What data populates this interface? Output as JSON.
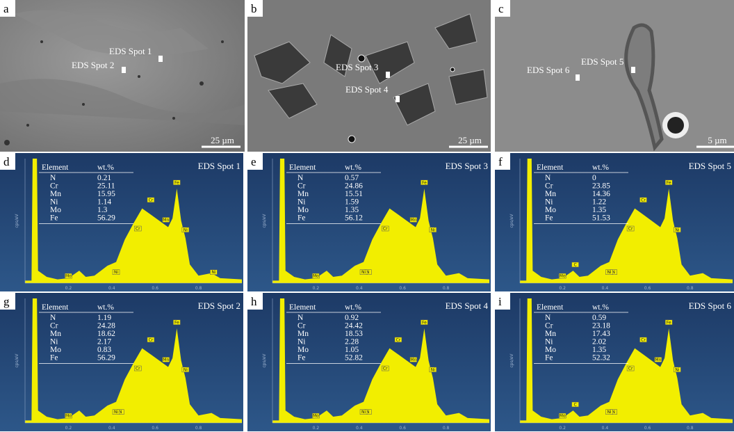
{
  "images": [
    {
      "label": "a",
      "scale_bar": "25 µm",
      "spots": [
        "EDS Spot 1",
        "EDS Spot 2"
      ]
    },
    {
      "label": "b",
      "scale_bar": "25 µm",
      "spots": [
        "EDS Spot 3",
        "EDS Spot 4"
      ]
    },
    {
      "label": "c",
      "scale_bar": "5 µm",
      "spots": [
        "EDS Spot 5",
        "EDS Spot 6"
      ]
    }
  ],
  "spectra_axis": {
    "x_ticks": [
      0.2,
      0.4,
      0.6,
      0.8
    ],
    "y_label": "cps/eV"
  },
  "spectra": [
    {
      "label": "d",
      "title": "EDS Spot 1",
      "header": [
        "Element",
        "wt.%"
      ],
      "rows": [
        [
          "N",
          0.21
        ],
        [
          "Cr",
          25.11
        ],
        [
          "Mn",
          15.95
        ],
        [
          "Ni",
          1.14
        ],
        [
          "Mo",
          1.3
        ],
        [
          "Fe",
          56.29
        ]
      ],
      "peaks": [
        "Mo",
        "Ni",
        "Cr",
        "Cr",
        "Mn",
        "Fe",
        "Ni",
        "Ni"
      ]
    },
    {
      "label": "e",
      "title": "EDS Spot 3",
      "header": [
        "Element",
        "wt.%"
      ],
      "rows": [
        [
          "N",
          0.57
        ],
        [
          "Cr",
          24.86
        ],
        [
          "Mn",
          15.51
        ],
        [
          "Ni",
          1.59
        ],
        [
          "Mo",
          1.35
        ],
        [
          "Fe",
          56.12
        ]
      ],
      "peaks": [
        "Mo",
        "N",
        "Cr",
        "Mn",
        "Fe",
        "Ni",
        "Ni"
      ]
    },
    {
      "label": "f",
      "title": "EDS Spot 5",
      "header": [
        "Element",
        "wt.%"
      ],
      "rows": [
        [
          "N",
          0
        ],
        [
          "Cr",
          23.85
        ],
        [
          "Mn",
          14.36
        ],
        [
          "Ni",
          1.22
        ],
        [
          "Mo",
          1.35
        ],
        [
          "Fe",
          51.53
        ]
      ],
      "peaks": [
        "Mo",
        "C",
        "N",
        "Cr",
        "Cr",
        "Fe",
        "Ni",
        "Ni"
      ]
    },
    {
      "label": "g",
      "title": "EDS Spot 2",
      "header": [
        "Element",
        "wt.%"
      ],
      "rows": [
        [
          "N",
          1.19
        ],
        [
          "Cr",
          24.28
        ],
        [
          "Mn",
          18.62
        ],
        [
          "Ni",
          2.17
        ],
        [
          "Mo",
          0.83
        ],
        [
          "Fe",
          56.29
        ]
      ],
      "peaks": [
        "Mo",
        "N",
        "Cr",
        "Cr",
        "Mn",
        "Fe",
        "Ni",
        "Ni"
      ]
    },
    {
      "label": "h",
      "title": "EDS Spot 4",
      "header": [
        "Element",
        "wt.%"
      ],
      "rows": [
        [
          "N",
          0.92
        ],
        [
          "Cr",
          24.42
        ],
        [
          "Mn",
          18.53
        ],
        [
          "Ni",
          2.28
        ],
        [
          "Mo",
          1.05
        ],
        [
          "Fe",
          52.82
        ]
      ],
      "peaks": [
        "Mo",
        "N",
        "Cr",
        "Cr",
        "Mn",
        "Fe",
        "Ni",
        "Ni"
      ]
    },
    {
      "label": "i",
      "title": "EDS Spot 6",
      "header": [
        "Element",
        "wt.%"
      ],
      "rows": [
        [
          "N",
          0.59
        ],
        [
          "Cr",
          23.18
        ],
        [
          "Mn",
          17.43
        ],
        [
          "Ni",
          2.02
        ],
        [
          "Mo",
          1.35
        ],
        [
          "Fe",
          52.32
        ]
      ],
      "peaks": [
        "Mo",
        "C",
        "N",
        "Cr",
        "Cr",
        "Mn",
        "Fe",
        "Ni",
        "Ni"
      ]
    }
  ]
}
